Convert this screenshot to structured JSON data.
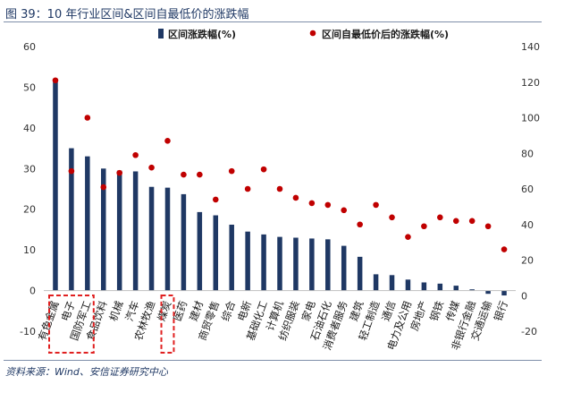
{
  "figure": {
    "title": "图 39：10 年行业区间&区间自最低价的涨跌幅",
    "source": "资料来源：Wind、安信证券研究中心"
  },
  "colors": {
    "bar": "#1f3864",
    "dot": "#c00000",
    "highlight": "#e02020"
  },
  "chart_data": {
    "type": "bar",
    "title": "10 年行业区间&区间自最低价的涨跌幅",
    "categories": [
      "有色金属",
      "电子",
      "国防军工",
      "食品饮料",
      "机械",
      "汽车",
      "农林牧渔",
      "煤炭",
      "医药",
      "建材",
      "商贸零售",
      "综合",
      "电新",
      "基础化工",
      "计算机",
      "纺织服装",
      "家电",
      "石油石化",
      "消费者服务",
      "建筑",
      "轻工制造",
      "通信",
      "电力及公用",
      "房地产",
      "钢铁",
      "传媒",
      "非银行金融",
      "交通运输",
      "银行"
    ],
    "series": [
      {
        "name": "区间涨跌幅(%)",
        "axis": "left",
        "kind": "bar",
        "values": [
          52,
          35,
          33,
          30,
          29.5,
          29.3,
          25.5,
          25.3,
          23.7,
          19.3,
          18.5,
          16.2,
          14.5,
          13.8,
          13.2,
          13.0,
          12.8,
          12.6,
          11.0,
          8.3,
          4.0,
          3.8,
          2.7,
          2.0,
          1.7,
          1.2,
          0.3,
          -0.8,
          -1.2
        ]
      },
      {
        "name": "区间自最低价后的涨跌幅(%)",
        "axis": "right",
        "kind": "dot",
        "values": [
          121,
          70,
          100,
          61,
          69,
          79,
          72,
          87,
          68,
          68,
          54,
          70,
          60,
          71,
          60,
          55,
          52,
          51,
          48,
          40,
          51,
          44,
          33,
          39,
          44,
          42,
          42,
          39,
          26
        ]
      }
    ],
    "ylim_left": [
      -10,
      60
    ],
    "yticks_left": [
      -10,
      0,
      10,
      20,
      30,
      40,
      50,
      60
    ],
    "ylim_right": [
      -20,
      140
    ],
    "yticks_right": [
      -20,
      0,
      20,
      40,
      60,
      80,
      100,
      120,
      140
    ],
    "highlighted": [
      "有色金属",
      "电子",
      "国防军工",
      "煤炭"
    ],
    "legend_position": "top-center"
  }
}
